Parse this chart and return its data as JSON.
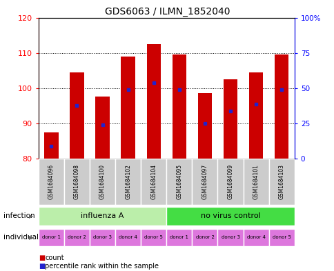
{
  "title": "GDS6063 / ILMN_1852040",
  "samples": [
    "GSM1684096",
    "GSM1684098",
    "GSM1684100",
    "GSM1684102",
    "GSM1684104",
    "GSM1684095",
    "GSM1684097",
    "GSM1684099",
    "GSM1684101",
    "GSM1684103"
  ],
  "bar_bottoms": [
    80,
    80,
    80,
    80,
    80,
    80,
    80,
    80,
    80,
    80
  ],
  "bar_tops": [
    87.5,
    104.5,
    97.5,
    109.0,
    112.5,
    109.5,
    98.5,
    102.5,
    104.5,
    109.5
  ],
  "blue_marker_values": [
    83.5,
    95.0,
    89.5,
    99.5,
    101.5,
    99.5,
    90.0,
    93.5,
    95.5,
    99.5
  ],
  "ylim_left": [
    80,
    120
  ],
  "ylim_right": [
    0,
    100
  ],
  "yticks_left": [
    80,
    90,
    100,
    110,
    120
  ],
  "yticks_right": [
    0,
    25,
    50,
    75,
    100
  ],
  "ytick_labels_right": [
    "0",
    "25",
    "50",
    "75",
    "100%"
  ],
  "bar_color": "#cc0000",
  "marker_color": "#2222cc",
  "infection_groups": [
    {
      "label": "influenza A",
      "start": 0,
      "end": 5,
      "color": "#bbeeaa"
    },
    {
      "label": "no virus control",
      "start": 5,
      "end": 10,
      "color": "#44dd44"
    }
  ],
  "individual_labels": [
    "donor 1",
    "donor 2",
    "donor 3",
    "donor 4",
    "donor 5",
    "donor 1",
    "donor 2",
    "donor 3",
    "donor 4",
    "donor 5"
  ],
  "individual_color": "#dd77dd",
  "sample_box_color": "#cccccc",
  "legend_items": [
    {
      "label": "count",
      "color": "#cc0000"
    },
    {
      "label": "percentile rank within the sample",
      "color": "#2222cc"
    }
  ],
  "infection_label": "infection",
  "individual_label": "individual"
}
